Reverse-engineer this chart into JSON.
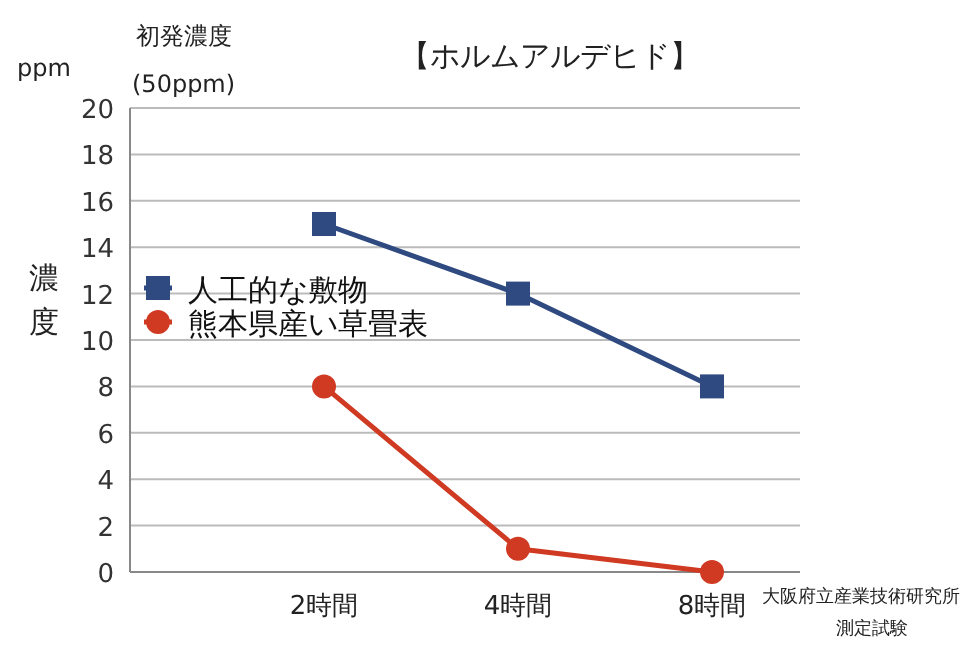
{
  "chart_data": {
    "type": "line",
    "title": "【ホルムアルデヒド】",
    "ylabel": "濃度",
    "categories": [
      null,
      "2時間",
      "4時間",
      "8時間"
    ],
    "series": [
      {
        "name": "人工的な敷物",
        "color": "#2f4a80",
        "marker": "square",
        "values": [
          null,
          15,
          12,
          8
        ]
      },
      {
        "name": "熊本県産い草畳表",
        "color": "#d03a22",
        "marker": "circle",
        "values": [
          null,
          8,
          1,
          0
        ]
      }
    ],
    "ylim": [
      0,
      20
    ],
    "yticks": [
      0,
      2,
      4,
      6,
      8,
      10,
      12,
      14,
      16,
      18,
      20
    ],
    "grid": "y",
    "legend": "left",
    "annotations": [
      "ppm",
      "初発濃度",
      "(50ppm)",
      "大阪府立産業技術研究所",
      "測定試験"
    ]
  }
}
